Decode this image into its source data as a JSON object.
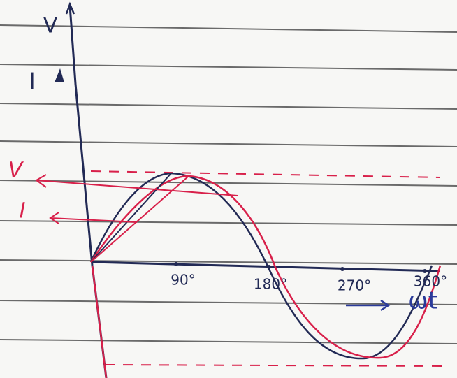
{
  "axes": {
    "vertical_v": "V",
    "vertical_i": "I",
    "horizontal": "ωt"
  },
  "curve_labels": {
    "voltage": "V",
    "current": "I"
  },
  "angle_ticks": [
    "90°",
    "180°",
    "270°",
    "360°"
  ]
}
